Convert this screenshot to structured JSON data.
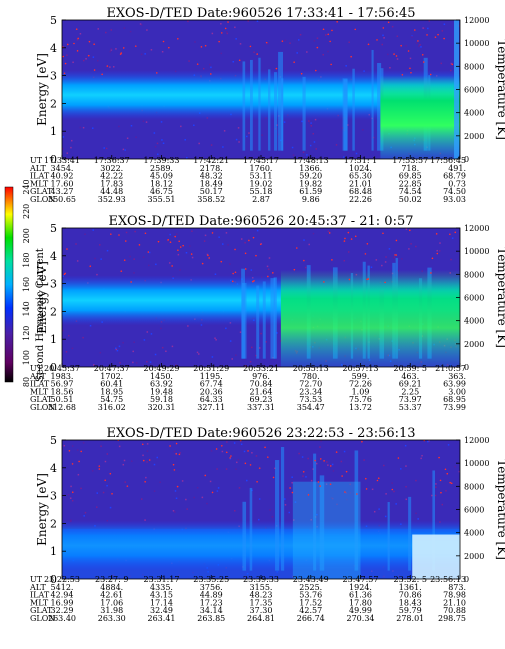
{
  "figure": {
    "colorbar": {
      "label": "Second Harmonic Current",
      "ticks": [
        "80",
        "100",
        "120",
        "140",
        "160",
        "180",
        "200",
        "220",
        "240"
      ]
    },
    "ylabel_left": "Energy [eV]",
    "ylabel_right": "Temperature [K]",
    "energy_ticks": [
      "0",
      "1",
      "2",
      "3",
      "4",
      "5"
    ],
    "temperature_ticks": [
      "0",
      "2000",
      "4000",
      "6000",
      "8000",
      "10000",
      "12000"
    ],
    "row_labels": [
      "UT",
      "ALT",
      "ILAT",
      "MLT",
      "GLAT",
      "GLON"
    ]
  },
  "chart_data": [
    {
      "type": "heatmap",
      "title": "EXOS-D/TED   Date:960526   17:33:41 - 17:56:45",
      "ylim": [
        0,
        5
      ],
      "ylim_right": [
        0,
        12000
      ],
      "rows": {
        "UT": [
          "17:33:41",
          "17:36:37",
          "17:39:33",
          "17:42:21",
          "17:45:17",
          "17:48:13",
          "17:51: 1",
          "17:53:57",
          "17:56:45"
        ],
        "ALT": [
          "3454.",
          "3022.",
          "2589.",
          "2178.",
          "1760.",
          "1366.",
          "1024.",
          "718.",
          "491."
        ],
        "ILAT": [
          "40.92",
          "42.22",
          "45.09",
          "48.32",
          "53.11",
          "59.20",
          "65.30",
          "69.85",
          "68.79"
        ],
        "MLT": [
          "17.60",
          "17.83",
          "18.12",
          "18.49",
          "19.02",
          "19.82",
          "21.01",
          "22.85",
          "0.73"
        ],
        "GLAT": [
          "43.27",
          "44.48",
          "46.75",
          "50.17",
          "55.18",
          "61.59",
          "68.48",
          "74.54",
          "74.50"
        ],
        "GLON": [
          "350.65",
          "352.93",
          "355.51",
          "358.52",
          "2.87",
          "9.86",
          "22.26",
          "50.02",
          "93.03"
        ]
      }
    },
    {
      "type": "heatmap",
      "title": "EXOS-D/TED   Date:960526   20:45:37 - 21: 0:57",
      "ylim": [
        0,
        5
      ],
      "ylim_right": [
        0,
        12000
      ],
      "rows": {
        "UT": [
          "20:45:37",
          "20:47:37",
          "20:49:29",
          "20:51:29",
          "20:53:21",
          "20:55:13",
          "20:57:13",
          "20:59: 5",
          "21:0:57"
        ],
        "ALT": [
          "1983.",
          "1702.",
          "1450.",
          "1195.",
          "976.",
          "780.",
          "599.",
          "463.",
          "363."
        ],
        "ILAT": [
          "56.97",
          "60.41",
          "63.92",
          "67.74",
          "70.84",
          "72.70",
          "72.26",
          "69.21",
          "63.99"
        ],
        "MLT": [
          "18.56",
          "18.95",
          "19.48",
          "20.36",
          "21.64",
          "23.34",
          "1.09",
          "2.25",
          "3.00"
        ],
        "GLAT": [
          "50.51",
          "54.75",
          "59.18",
          "64.33",
          "69.23",
          "73.53",
          "75.76",
          "73.97",
          "68.95"
        ],
        "GLON": [
          "312.68",
          "316.02",
          "320.31",
          "327.11",
          "337.31",
          "354.47",
          "13.72",
          "53.37",
          "73.99"
        ]
      }
    },
    {
      "type": "heatmap",
      "title": "EXOS-D/TED   Date:960526   23:22:53 - 23:56:13",
      "ylim": [
        0,
        5
      ],
      "ylim_right": [
        0,
        12000
      ],
      "rows": {
        "UT": [
          "23:22:53",
          "23:27: 9",
          "23:31:17",
          "23:35:25",
          "23:39:33",
          "23:43:49",
          "23:47:57",
          "23:52: 5",
          "23:56:13"
        ],
        "ALT": [
          "5412.",
          "4884.",
          "4335.",
          "3756.",
          "3155.",
          "2525.",
          "1924.",
          "1361.",
          "873."
        ],
        "ILAT": [
          "42.94",
          "42.61",
          "43.15",
          "44.89",
          "48.23",
          "53.76",
          "61.36",
          "70.86",
          "78.98"
        ],
        "MLT": [
          "16.99",
          "17.06",
          "17.14",
          "17.23",
          "17.35",
          "17.52",
          "17.80",
          "18.43",
          "21.10"
        ],
        "GLAT": [
          "32.29",
          "31.98",
          "32.49",
          "34.14",
          "37.30",
          "42.57",
          "49.99",
          "59.79",
          "70.88"
        ],
        "GLON": [
          "263.40",
          "263.30",
          "263.41",
          "263.85",
          "264.81",
          "266.74",
          "270.34",
          "278.01",
          "298.75"
        ]
      }
    }
  ]
}
